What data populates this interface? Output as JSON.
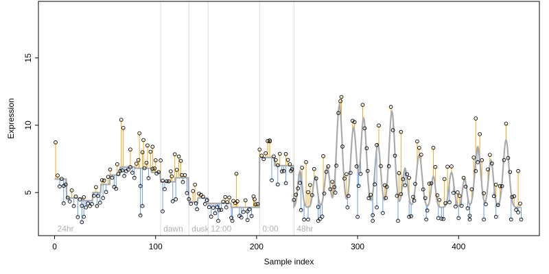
{
  "chart_data": {
    "type": "scatter",
    "xlabel": "Sample index",
    "ylabel": "Expression",
    "xlim": [
      -16,
      480
    ],
    "ylim": [
      1.8,
      19.2
    ],
    "x_ticks": [
      0,
      100,
      200,
      300,
      400
    ],
    "y_ticks": [
      5,
      10,
      15
    ],
    "grid": false,
    "legend": "none",
    "regions": [
      {
        "label": "24hr",
        "start": 0
      },
      {
        "label": "dawn",
        "start": 105
      },
      {
        "label": "dusk",
        "start": 133
      },
      {
        "label": "12:00",
        "start": 152
      },
      {
        "label": "0:00",
        "start": 203
      },
      {
        "label": "48hr",
        "start": 237
      }
    ],
    "colors": {
      "above_fit": "#f5a623",
      "below_fit": "#6a9be3",
      "fit_line": "#aaaaaa",
      "points": "#000000",
      "separator": "#dddddd"
    },
    "segment_levels": [
      {
        "start": 0,
        "end": 12,
        "level": 6.0
      },
      {
        "start": 12,
        "end": 28,
        "level": 4.6
      },
      {
        "start": 28,
        "end": 38,
        "level": 4.4
      },
      {
        "start": 38,
        "end": 46,
        "level": 5.0
      },
      {
        "start": 46,
        "end": 55,
        "level": 5.6
      },
      {
        "start": 55,
        "end": 65,
        "level": 6.3
      },
      {
        "start": 65,
        "end": 80,
        "level": 6.9
      },
      {
        "start": 80,
        "end": 96,
        "level": 6.8
      },
      {
        "start": 96,
        "end": 105,
        "level": 6.5
      },
      {
        "start": 105,
        "end": 120,
        "level": 5.8
      },
      {
        "start": 120,
        "end": 133,
        "level": 6.1
      },
      {
        "start": 133,
        "end": 142,
        "level": 4.3
      },
      {
        "start": 142,
        "end": 152,
        "level": 4.6
      },
      {
        "start": 152,
        "end": 175,
        "level": 4.2
      },
      {
        "start": 175,
        "end": 203,
        "level": 3.9
      },
      {
        "start": 203,
        "end": 218,
        "level": 7.6
      },
      {
        "start": 218,
        "end": 237,
        "level": 7.0
      }
    ],
    "fit_oscillation": {
      "start": 237,
      "end": 462,
      "peaks": [
        {
          "x": 243,
          "h": 6.6,
          "w": 3
        },
        {
          "x": 258,
          "h": 6.2,
          "w": 3
        },
        {
          "x": 270,
          "h": 6.9,
          "w": 3.5
        },
        {
          "x": 282,
          "h": 11.5,
          "w": 4
        },
        {
          "x": 296,
          "h": 9.8,
          "w": 4
        },
        {
          "x": 306,
          "h": 10.5,
          "w": 4
        },
        {
          "x": 320,
          "h": 8.6,
          "w": 4
        },
        {
          "x": 334,
          "h": 11.0,
          "w": 4
        },
        {
          "x": 347,
          "h": 6.8,
          "w": 3.5
        },
        {
          "x": 361,
          "h": 7.8,
          "w": 4
        },
        {
          "x": 375,
          "h": 6.2,
          "w": 3
        },
        {
          "x": 393,
          "h": 6.5,
          "w": 3.5
        },
        {
          "x": 406,
          "h": 6.0,
          "w": 3
        },
        {
          "x": 419,
          "h": 8.4,
          "w": 4
        },
        {
          "x": 432,
          "h": 7.4,
          "w": 3.5
        },
        {
          "x": 447,
          "h": 8.9,
          "w": 4
        }
      ]
    },
    "extra_points": [
      {
        "x": 9,
        "y": 4.2
      },
      {
        "x": 27,
        "y": 2.8
      },
      {
        "x": 29,
        "y": 3.2
      },
      {
        "x": 42,
        "y": 4.0
      },
      {
        "x": 48,
        "y": 4.6
      },
      {
        "x": 62,
        "y": 7.1
      },
      {
        "x": 66,
        "y": 10.4
      },
      {
        "x": 68,
        "y": 9.8
      },
      {
        "x": 75,
        "y": 8.2
      },
      {
        "x": 84,
        "y": 9.4
      },
      {
        "x": 85,
        "y": 3.3
      },
      {
        "x": 87,
        "y": 4.0
      },
      {
        "x": 88,
        "y": 8.9
      },
      {
        "x": 92,
        "y": 8.5
      },
      {
        "x": 97,
        "y": 8.4
      },
      {
        "x": 100,
        "y": 7.4
      },
      {
        "x": 107,
        "y": 3.6
      },
      {
        "x": 116,
        "y": 6.2
      },
      {
        "x": 120,
        "y": 4.5
      },
      {
        "x": 126,
        "y": 6.3
      },
      {
        "x": 140,
        "y": 4.2
      },
      {
        "x": 162,
        "y": 2.9
      },
      {
        "x": 170,
        "y": 3.9
      },
      {
        "x": 176,
        "y": 2.9
      },
      {
        "x": 180,
        "y": 6.4
      },
      {
        "x": 191,
        "y": 3.6
      },
      {
        "x": 198,
        "y": 4.5
      },
      {
        "x": 213,
        "y": 8.8
      },
      {
        "x": 221,
        "y": 5.6
      },
      {
        "x": 229,
        "y": 5.7
      },
      {
        "x": 234,
        "y": 6.6
      },
      {
        "x": 244,
        "y": 3.7
      },
      {
        "x": 251,
        "y": 3.0
      },
      {
        "x": 261,
        "y": 2.9
      },
      {
        "x": 266,
        "y": 7.7
      },
      {
        "x": 278,
        "y": 5.0
      },
      {
        "x": 284,
        "y": 12.1
      },
      {
        "x": 290,
        "y": 3.9
      },
      {
        "x": 300,
        "y": 3.2
      },
      {
        "x": 310,
        "y": 6.6
      },
      {
        "x": 315,
        "y": 2.9
      },
      {
        "x": 319,
        "y": 3.9
      },
      {
        "x": 328,
        "y": 4.6
      },
      {
        "x": 340,
        "y": 2.9
      },
      {
        "x": 343,
        "y": 9.5
      },
      {
        "x": 351,
        "y": 3.2
      },
      {
        "x": 356,
        "y": 4.4
      },
      {
        "x": 368,
        "y": 3.0
      },
      {
        "x": 380,
        "y": 3.1
      },
      {
        "x": 386,
        "y": 6.0
      },
      {
        "x": 400,
        "y": 3.1
      },
      {
        "x": 411,
        "y": 3.0
      },
      {
        "x": 417,
        "y": 10.5
      },
      {
        "x": 425,
        "y": 3.0
      },
      {
        "x": 437,
        "y": 3.2
      },
      {
        "x": 452,
        "y": 3.0
      },
      {
        "x": 459,
        "y": 6.6
      },
      {
        "x": 462,
        "y": 3.0
      }
    ],
    "n_samples": 462,
    "noise_seed": 7
  }
}
